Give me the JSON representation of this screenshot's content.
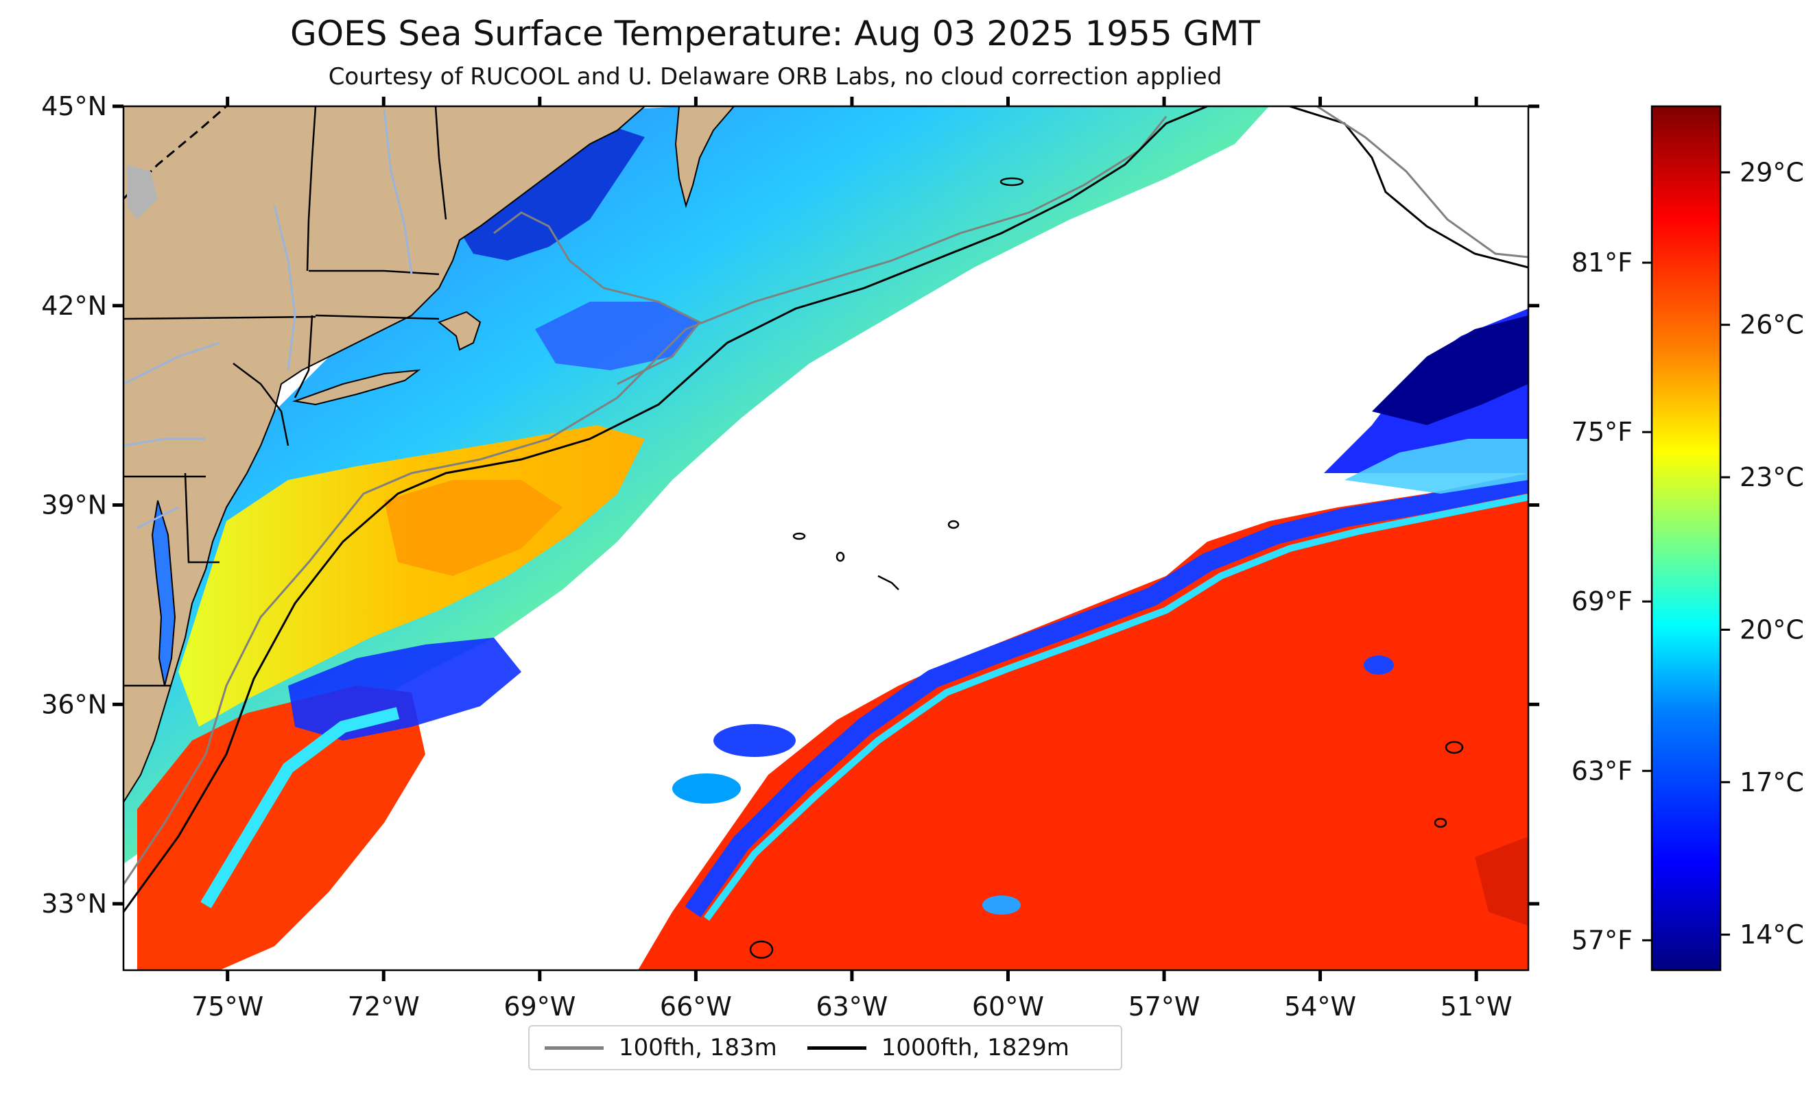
{
  "title": "GOES Sea Surface Temperature: Aug 03 2025 1955 GMT",
  "subtitle": "Courtesy of RUCOOL and U. Delaware ORB Labs, no cloud correction applied",
  "map": {
    "lon_range": [
      -77.0,
      -50.0
    ],
    "lat_range": [
      32.0,
      45.0
    ],
    "lon_ticks": [
      {
        "value": -75,
        "label": "75°W"
      },
      {
        "value": -72,
        "label": "72°W"
      },
      {
        "value": -69,
        "label": "69°W"
      },
      {
        "value": -66,
        "label": "66°W"
      },
      {
        "value": -63,
        "label": "63°W"
      },
      {
        "value": -60,
        "label": "60°W"
      },
      {
        "value": -57,
        "label": "57°W"
      },
      {
        "value": -54,
        "label": "54°W"
      },
      {
        "value": -51,
        "label": "51°W"
      }
    ],
    "lat_ticks": [
      {
        "value": 45,
        "label": "45°N"
      },
      {
        "value": 42,
        "label": "42°N"
      },
      {
        "value": 39,
        "label": "39°N"
      },
      {
        "value": 36,
        "label": "36°N"
      },
      {
        "value": 33,
        "label": "33°N"
      }
    ],
    "land_color": "#d2b48c",
    "cloud_color": "#ffffff"
  },
  "colorbar": {
    "celsius_ticks": [
      {
        "value": 14,
        "label": "14°C"
      },
      {
        "value": 17,
        "label": "17°C"
      },
      {
        "value": 20,
        "label": "20°C"
      },
      {
        "value": 23,
        "label": "23°C"
      },
      {
        "value": 26,
        "label": "26°C"
      },
      {
        "value": 29,
        "label": "29°C"
      }
    ],
    "fahrenheit_ticks": [
      {
        "value": 57,
        "label": "57°F"
      },
      {
        "value": 63,
        "label": "63°F"
      },
      {
        "value": 69,
        "label": "69°F"
      },
      {
        "value": 75,
        "label": "75°F"
      },
      {
        "value": 81,
        "label": "81°F"
      }
    ],
    "range_celsius": [
      13.3,
      30.3
    ],
    "colormap": [
      "#00007f",
      "#0000ff",
      "#007fff",
      "#00ffff",
      "#7fff7f",
      "#ffff00",
      "#ff7f00",
      "#ff0000",
      "#7f0000"
    ]
  },
  "legend": {
    "items": [
      {
        "label": "100fth, 183m",
        "color": "#808080"
      },
      {
        "label": "1000fth, 1829m",
        "color": "#000000"
      }
    ]
  }
}
